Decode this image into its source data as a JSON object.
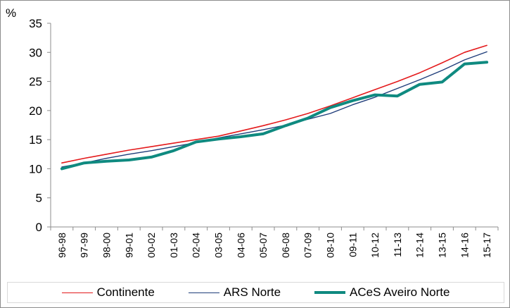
{
  "chart_data": {
    "type": "line",
    "unit_label": "%",
    "ylim": [
      0,
      35
    ],
    "yticks": [
      0,
      5,
      10,
      15,
      20,
      25,
      30,
      35
    ],
    "grid": false,
    "legend_position": "bottom",
    "categories": [
      "96-98",
      "97-99",
      "98-00",
      "99-01",
      "00-02",
      "01-03",
      "02-04",
      "03-05",
      "04-06",
      "05-07",
      "06-08",
      "07-09",
      "08-10",
      "09-11",
      "10-12",
      "11-13",
      "12-14",
      "13-15",
      "14-16",
      "15-17"
    ],
    "series": [
      {
        "name": "Continente",
        "color": "#e41a1c",
        "width": 1.6,
        "values": [
          11.0,
          11.8,
          12.5,
          13.2,
          13.8,
          14.4,
          15.0,
          15.6,
          16.5,
          17.4,
          18.4,
          19.5,
          20.8,
          22.2,
          23.6,
          25.0,
          26.5,
          28.2,
          30.0,
          31.2
        ]
      },
      {
        "name": "ARS Norte",
        "color": "#1f3d7a",
        "width": 1.4,
        "values": [
          10.3,
          11.0,
          11.8,
          12.5,
          13.1,
          13.8,
          14.5,
          15.3,
          16.0,
          16.7,
          17.5,
          18.5,
          19.5,
          21.0,
          22.3,
          23.8,
          25.3,
          26.9,
          28.7,
          30.1
        ]
      },
      {
        "name": "ACeS Aveiro Norte",
        "color": "#0f8a80",
        "width": 4,
        "values": [
          10.0,
          11.0,
          11.3,
          11.5,
          12.0,
          13.1,
          14.6,
          15.1,
          15.5,
          16.0,
          17.4,
          18.7,
          20.5,
          21.7,
          22.7,
          22.5,
          24.5,
          24.9,
          28.0,
          28.3
        ]
      }
    ]
  }
}
